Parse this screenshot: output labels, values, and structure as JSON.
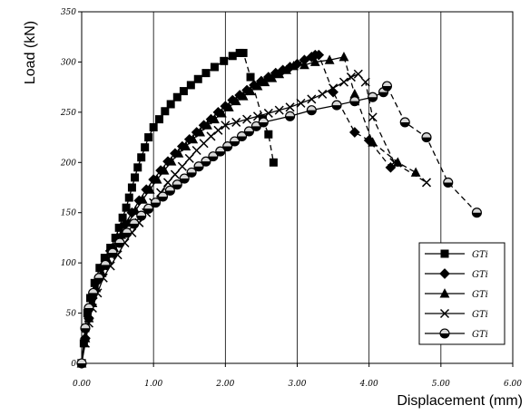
{
  "chart_data": {
    "type": "line",
    "title": "",
    "xlabel": "Displacement (mm)",
    "ylabel": "Load (kN)",
    "xlim": [
      0,
      6
    ],
    "ylim": [
      0,
      350
    ],
    "x_ticks": [
      "0.00",
      "1.00",
      "2.00",
      "3.00",
      "4.00",
      "5.00",
      "6.00"
    ],
    "y_ticks": [
      "0",
      "50",
      "100",
      "150",
      "200",
      "250",
      "300",
      "350"
    ],
    "grid": "vertical",
    "legend_position": "bottom-right",
    "series": [
      {
        "name": "GTi",
        "marker": "square",
        "dashed_after_peak": true,
        "points": [
          [
            0.0,
            0
          ],
          [
            0.03,
            20
          ],
          [
            0.05,
            35
          ],
          [
            0.08,
            50
          ],
          [
            0.12,
            65
          ],
          [
            0.18,
            80
          ],
          [
            0.25,
            95
          ],
          [
            0.32,
            105
          ],
          [
            0.4,
            115
          ],
          [
            0.47,
            125
          ],
          [
            0.52,
            135
          ],
          [
            0.57,
            145
          ],
          [
            0.62,
            155
          ],
          [
            0.66,
            165
          ],
          [
            0.7,
            175
          ],
          [
            0.74,
            185
          ],
          [
            0.78,
            195
          ],
          [
            0.83,
            205
          ],
          [
            0.88,
            215
          ],
          [
            0.93,
            225
          ],
          [
            1.0,
            235
          ],
          [
            1.08,
            243
          ],
          [
            1.16,
            251
          ],
          [
            1.24,
            258
          ],
          [
            1.33,
            265
          ],
          [
            1.42,
            271
          ],
          [
            1.52,
            277
          ],
          [
            1.62,
            283
          ],
          [
            1.73,
            289
          ],
          [
            1.85,
            295
          ],
          [
            1.98,
            301
          ],
          [
            2.1,
            306
          ],
          [
            2.2,
            309
          ],
          [
            2.25,
            309
          ],
          [
            2.35,
            285
          ],
          [
            2.52,
            243
          ],
          [
            2.6,
            228
          ],
          [
            2.67,
            200
          ]
        ]
      },
      {
        "name": "GTi",
        "marker": "diamond",
        "dashed_after_peak": true,
        "points": [
          [
            0.0,
            0
          ],
          [
            0.05,
            25
          ],
          [
            0.1,
            45
          ],
          [
            0.15,
            65
          ],
          [
            0.22,
            82
          ],
          [
            0.3,
            97
          ],
          [
            0.4,
            112
          ],
          [
            0.5,
            125
          ],
          [
            0.6,
            138
          ],
          [
            0.7,
            150
          ],
          [
            0.8,
            162
          ],
          [
            0.9,
            173
          ],
          [
            1.0,
            183
          ],
          [
            1.1,
            192
          ],
          [
            1.2,
            201
          ],
          [
            1.3,
            209
          ],
          [
            1.4,
            216
          ],
          [
            1.5,
            223
          ],
          [
            1.6,
            230
          ],
          [
            1.7,
            237
          ],
          [
            1.8,
            243
          ],
          [
            1.9,
            250
          ],
          [
            2.0,
            256
          ],
          [
            2.1,
            262
          ],
          [
            2.2,
            267
          ],
          [
            2.3,
            272
          ],
          [
            2.4,
            277
          ],
          [
            2.5,
            281
          ],
          [
            2.6,
            285
          ],
          [
            2.7,
            289
          ],
          [
            2.8,
            292
          ],
          [
            2.9,
            295
          ],
          [
            3.0,
            298
          ],
          [
            3.1,
            302
          ],
          [
            3.2,
            305
          ],
          [
            3.25,
            307
          ],
          [
            3.3,
            307
          ],
          [
            3.5,
            270
          ],
          [
            3.8,
            230
          ],
          [
            4.0,
            222
          ],
          [
            4.3,
            195
          ]
        ]
      },
      {
        "name": "GTi",
        "marker": "triangle",
        "dashed_after_peak": true,
        "points": [
          [
            0.0,
            0
          ],
          [
            0.05,
            25
          ],
          [
            0.1,
            45
          ],
          [
            0.15,
            60
          ],
          [
            0.2,
            75
          ],
          [
            0.28,
            90
          ],
          [
            0.36,
            103
          ],
          [
            0.45,
            115
          ],
          [
            0.55,
            128
          ],
          [
            0.65,
            140
          ],
          [
            0.75,
            152
          ],
          [
            0.85,
            163
          ],
          [
            0.95,
            173
          ],
          [
            1.05,
            183
          ],
          [
            1.15,
            192
          ],
          [
            1.25,
            201
          ],
          [
            1.35,
            209
          ],
          [
            1.45,
            216
          ],
          [
            1.55,
            223
          ],
          [
            1.65,
            230
          ],
          [
            1.75,
            237
          ],
          [
            1.85,
            243
          ],
          [
            1.95,
            249
          ],
          [
            2.05,
            255
          ],
          [
            2.15,
            261
          ],
          [
            2.25,
            266
          ],
          [
            2.35,
            271
          ],
          [
            2.45,
            276
          ],
          [
            2.55,
            280
          ],
          [
            2.65,
            284
          ],
          [
            2.75,
            288
          ],
          [
            2.85,
            292
          ],
          [
            2.95,
            296
          ],
          [
            3.1,
            297
          ],
          [
            3.25,
            300
          ],
          [
            3.45,
            302
          ],
          [
            3.65,
            305
          ],
          [
            3.8,
            268
          ],
          [
            4.05,
            220
          ],
          [
            4.4,
            200
          ],
          [
            4.65,
            190
          ]
        ]
      },
      {
        "name": "GTi",
        "marker": "cross",
        "dashed_after_peak": true,
        "points": [
          [
            0.0,
            0
          ],
          [
            0.05,
            20
          ],
          [
            0.1,
            40
          ],
          [
            0.15,
            55
          ],
          [
            0.22,
            70
          ],
          [
            0.3,
            85
          ],
          [
            0.4,
            97
          ],
          [
            0.5,
            108
          ],
          [
            0.6,
            120
          ],
          [
            0.7,
            130
          ],
          [
            0.8,
            140
          ],
          [
            0.9,
            150
          ],
          [
            1.0,
            160
          ],
          [
            1.1,
            170
          ],
          [
            1.2,
            180
          ],
          [
            1.3,
            188
          ],
          [
            1.4,
            196
          ],
          [
            1.5,
            204
          ],
          [
            1.6,
            212
          ],
          [
            1.7,
            219
          ],
          [
            1.8,
            226
          ],
          [
            1.9,
            232
          ],
          [
            2.0,
            237
          ],
          [
            2.15,
            240
          ],
          [
            2.3,
            243
          ],
          [
            2.45,
            246
          ],
          [
            2.6,
            249
          ],
          [
            2.75,
            252
          ],
          [
            2.9,
            255
          ],
          [
            3.05,
            259
          ],
          [
            3.2,
            263
          ],
          [
            3.35,
            268
          ],
          [
            3.5,
            274
          ],
          [
            3.65,
            280
          ],
          [
            3.75,
            285
          ],
          [
            3.85,
            288
          ],
          [
            3.95,
            280
          ],
          [
            4.05,
            245
          ],
          [
            4.35,
            200
          ],
          [
            4.8,
            180
          ]
        ]
      },
      {
        "name": "GTi",
        "marker": "circle",
        "dashed_after_peak": true,
        "points": [
          [
            0.0,
            0
          ],
          [
            0.05,
            35
          ],
          [
            0.1,
            55
          ],
          [
            0.16,
            70
          ],
          [
            0.24,
            85
          ],
          [
            0.33,
            98
          ],
          [
            0.43,
            110
          ],
          [
            0.53,
            120
          ],
          [
            0.63,
            130
          ],
          [
            0.73,
            139
          ],
          [
            0.83,
            147
          ],
          [
            0.93,
            154
          ],
          [
            1.03,
            160
          ],
          [
            1.13,
            166
          ],
          [
            1.23,
            172
          ],
          [
            1.33,
            178
          ],
          [
            1.43,
            184
          ],
          [
            1.53,
            190
          ],
          [
            1.63,
            196
          ],
          [
            1.73,
            201
          ],
          [
            1.83,
            206
          ],
          [
            1.93,
            211
          ],
          [
            2.03,
            216
          ],
          [
            2.13,
            221
          ],
          [
            2.23,
            226
          ],
          [
            2.33,
            231
          ],
          [
            2.43,
            236
          ],
          [
            2.53,
            240
          ],
          [
            2.9,
            246
          ],
          [
            3.2,
            252
          ],
          [
            3.55,
            257
          ],
          [
            3.8,
            261
          ],
          [
            4.05,
            265
          ],
          [
            4.2,
            270
          ],
          [
            4.25,
            276
          ],
          [
            4.5,
            240
          ],
          [
            4.8,
            225
          ],
          [
            5.1,
            180
          ],
          [
            5.5,
            150
          ]
        ]
      }
    ]
  }
}
